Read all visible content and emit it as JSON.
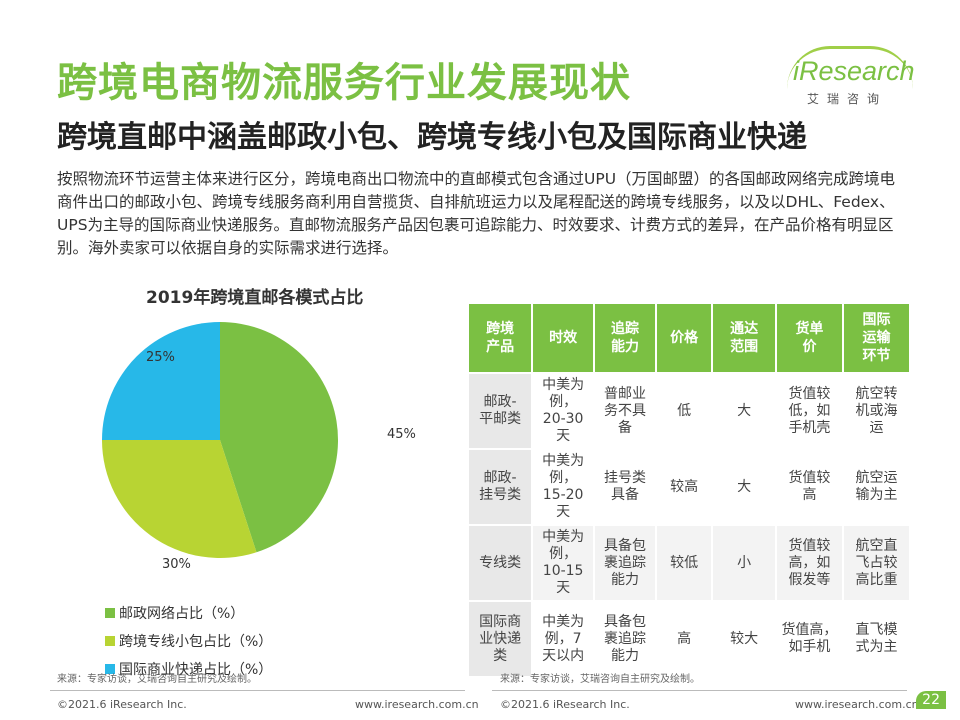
{
  "header": {
    "title": "跨境电商物流服务行业发展现状",
    "subtitle": "跨境直邮中涵盖邮政小包、跨境专线小包及国际商业快递",
    "body": "按照物流环节运营主体来进行区分，跨境电商出口物流中的直邮模式包含通过UPU（万国邮盟）的各国邮政网络完成跨境电商件出口的邮政小包、跨境专线服务商利用自营揽货、自排航班运力以及尾程配送的跨境专线服务，以及以DHL、Fedex、UPS为主导的国际商业快递服务。直邮物流服务产品因包裹可追踪能力、时效要求、计费方式的差异，在产品价格有明显区别。海外卖家可以依据自身的实际需求进行选择。"
  },
  "logo": {
    "brand": "iResearch",
    "cn": "艾瑞咨询"
  },
  "chart_data": {
    "type": "pie",
    "title": "2019年跨境直邮各模式占比",
    "series": [
      {
        "name": "邮政网络占比（%）",
        "value": 45,
        "label": "45%",
        "color": "#7bc043"
      },
      {
        "name": "跨境专线小包占比（%）",
        "value": 30,
        "label": "30%",
        "color": "#b8d433"
      },
      {
        "name": "国际商业快递占比（%）",
        "value": 25,
        "label": "25%",
        "color": "#27b8e8"
      }
    ]
  },
  "table": {
    "headers": [
      "跨境\n产品",
      "时效",
      "追踪\n能力",
      "价格",
      "通达\n范围",
      "货单\n价",
      "国际\n运输\n环节"
    ],
    "rows": [
      [
        "邮政-\n平邮类",
        "中美为\n例，\n20-30\n天",
        "普邮业\n务不具\n备",
        "低",
        "大",
        "货值较\n低，如\n手机壳",
        "航空转\n机或海\n运"
      ],
      [
        "邮政-\n挂号类",
        "中美为\n例，\n15-20\n天",
        "挂号类\n具备",
        "较高",
        "大",
        "货值较\n高",
        "航空运\n输为主"
      ],
      [
        "专线类",
        "中美为\n例，\n10-15\n天",
        "具备包\n裹追踪\n能力",
        "较低",
        "小",
        "货值较\n高，如\n假发等",
        "航空直\n飞占较\n高比重"
      ],
      [
        "国际商\n业快递\n类",
        "中美为\n例，7\n天以内",
        "具备包\n裹追踪\n能力",
        "高",
        "较大",
        "货值高，\n如手机",
        "直飞模\n式为主"
      ]
    ]
  },
  "footer": {
    "source_left": "来源：专家访谈，艾瑞咨询自主研究及绘制。",
    "source_right": "来源：专家访谈，艾瑞咨询自主研究及绘制。",
    "copyright_left": "©2021.6 iResearch Inc.",
    "url_left": "www.iresearch.com.cn",
    "copyright_right": "©2021.6 iResearch Inc.",
    "url_right": "www.iresearch.com.cn",
    "page": "22"
  }
}
